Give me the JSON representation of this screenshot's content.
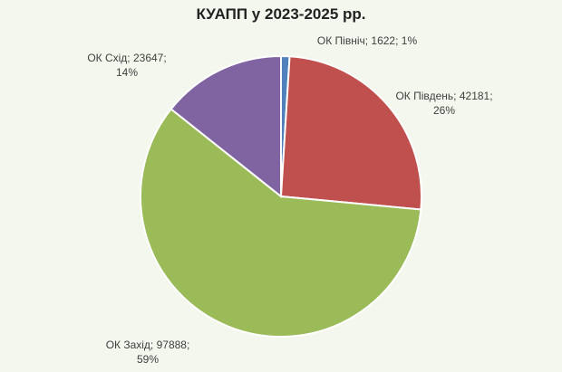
{
  "chart_data": {
    "type": "pie",
    "title": "КУАПП у 2023-2025 рр.",
    "slices": [
      {
        "name": "ОК Північ",
        "value": 1622,
        "percent": "1%",
        "color": "#4f81bd",
        "label_lines": [
          "ОК Північ; 1622; 1%"
        ]
      },
      {
        "name": "ОК Південь",
        "value": 42181,
        "percent": "26%",
        "color": "#c0504d",
        "label_lines": [
          "ОК Південь; 42181;",
          "26%"
        ]
      },
      {
        "name": "ОК Захід",
        "value": 97888,
        "percent": "59%",
        "color": "#9bbb59",
        "label_lines": [
          "ОК Захід; 97888;",
          "59%"
        ]
      },
      {
        "name": "ОК Схід",
        "value": 23647,
        "percent": "14%",
        "color": "#8064a2",
        "label_lines": [
          "ОК Схід; 23647;",
          "14%"
        ]
      }
    ]
  }
}
